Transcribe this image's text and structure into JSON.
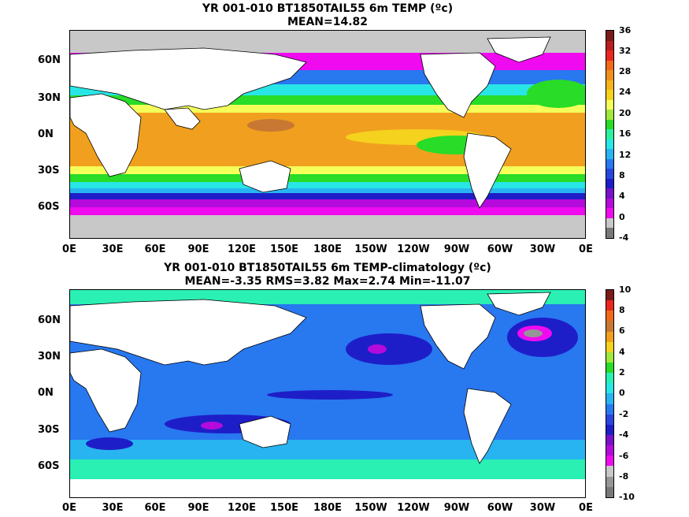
{
  "panel_top": {
    "title_line1": "YR 001-010 BT1850TAIL55 6m TEMP (ºc)",
    "title_line2": "MEAN=14.82",
    "lat_labels": [
      "60N",
      "30N",
      "0N",
      "30S",
      "60S"
    ],
    "lon_labels": [
      "0E",
      "30E",
      "60E",
      "90E",
      "120E",
      "150E",
      "180E",
      "150W",
      "120W",
      "90W",
      "60W",
      "30W",
      "0E"
    ],
    "colorbar_labels": [
      "36",
      "32",
      "28",
      "24",
      "20",
      "16",
      "12",
      "8",
      "4",
      "0",
      "-4"
    ],
    "colorbar_colors": [
      "#7a1a1a",
      "#b81e1e",
      "#e8281e",
      "#f06a1a",
      "#f0901a",
      "#f5b41e",
      "#f5d21e",
      "#f5ff5a",
      "#a0e83c",
      "#28dc28",
      "#2af0a0",
      "#28e6e6",
      "#28b4f0",
      "#2878f0",
      "#2846dc",
      "#1e1ec8",
      "#7a10c8",
      "#b40adc",
      "#f00af0",
      "#c8c8c8",
      "#787878"
    ]
  },
  "panel_bottom": {
    "title_line1": "YR 001-010 BT1850TAIL55 6m TEMP-climatology (ºc)",
    "title_line2": "MEAN=-3.35   RMS=3.82   Max=2.74   Min=-11.07",
    "lat_labels": [
      "60N",
      "30N",
      "0N",
      "30S",
      "60S"
    ],
    "lon_labels": [
      "0E",
      "30E",
      "60E",
      "90E",
      "120E",
      "150E",
      "180E",
      "150W",
      "120W",
      "90W",
      "60W",
      "30W",
      "0E"
    ],
    "colorbar_labels": [
      "10",
      "8",
      "6",
      "4",
      "2",
      "0",
      "-2",
      "-4",
      "-6",
      "-8",
      "-10"
    ],
    "colorbar_colors": [
      "#7a1a1a",
      "#e8281e",
      "#f06a1a",
      "#c87832",
      "#f0a01e",
      "#f5d21e",
      "#a0e83c",
      "#28dc28",
      "#2af0b4",
      "#28e6e6",
      "#28b4f0",
      "#2878f0",
      "#2846dc",
      "#1e1ec8",
      "#7a10c8",
      "#b40adc",
      "#f00af0",
      "#c8c8c8",
      "#969696",
      "#787878"
    ]
  }
}
